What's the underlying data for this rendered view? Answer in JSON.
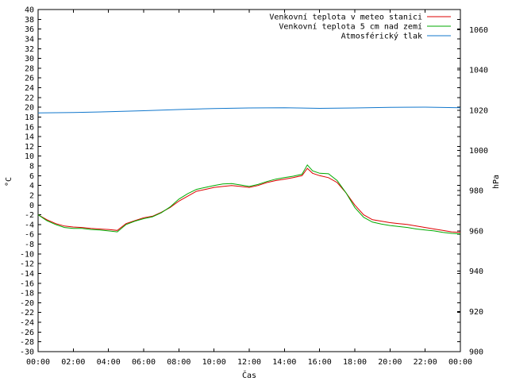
{
  "chart_data": {
    "type": "line",
    "xlabel": "Čas",
    "ylabel": "°C",
    "y2label": "hPa",
    "xlim": [
      0,
      24
    ],
    "ylim": [
      -30,
      40
    ],
    "y2lim": [
      900,
      1070
    ],
    "xticks": [
      "00:00",
      "02:00",
      "04:00",
      "06:00",
      "08:00",
      "10:00",
      "12:00",
      "14:00",
      "16:00",
      "18:00",
      "20:00",
      "22:00",
      "00:00"
    ],
    "yticks": [
      40,
      38,
      36,
      34,
      32,
      30,
      28,
      26,
      24,
      22,
      20,
      18,
      16,
      14,
      12,
      10,
      8,
      6,
      4,
      2,
      0,
      -2,
      -4,
      -6,
      -8,
      -10,
      -12,
      -14,
      -16,
      -18,
      -20,
      -22,
      -24,
      -26,
      -28,
      -30
    ],
    "y2ticks": [
      1060,
      1040,
      1020,
      1000,
      980,
      960,
      940,
      920,
      900
    ],
    "grid": false,
    "legend_position": "top-right",
    "series": [
      {
        "name": "Venkovní teplota v meteo stanici",
        "color": "#dd0000",
        "axis": "left",
        "x": [
          0,
          0.5,
          1,
          1.5,
          2,
          2.5,
          3,
          3.5,
          4,
          4.5,
          5,
          5.5,
          6,
          6.5,
          7,
          7.5,
          8,
          8.5,
          9,
          9.5,
          10,
          10.5,
          11,
          11.5,
          12,
          12.5,
          13,
          13.5,
          14,
          14.5,
          15,
          15.3,
          15.6,
          16,
          16.5,
          17,
          17.5,
          18,
          18.5,
          19,
          19.5,
          20,
          20.5,
          21,
          21.5,
          22,
          22.5,
          23,
          23.5,
          24
        ],
        "y": [
          -2,
          -3,
          -3.8,
          -4.3,
          -4.5,
          -4.6,
          -4.8,
          -4.9,
          -5,
          -5.2,
          -3.8,
          -3.2,
          -2.6,
          -2.3,
          -1.5,
          -0.5,
          0.8,
          1.8,
          2.8,
          3.2,
          3.6,
          3.8,
          4,
          3.8,
          3.6,
          4,
          4.6,
          5,
          5.3,
          5.6,
          6,
          7.5,
          6.5,
          6,
          5.6,
          4.6,
          2.5,
          0,
          -2,
          -3,
          -3.3,
          -3.6,
          -3.8,
          -4,
          -4.3,
          -4.6,
          -4.9,
          -5.2,
          -5.5,
          -5.6
        ]
      },
      {
        "name": "Venkovní teplota 5 cm nad zemí",
        "color": "#00aa00",
        "axis": "left",
        "x": [
          0,
          0.5,
          1,
          1.5,
          2,
          2.5,
          3,
          3.5,
          4,
          4.5,
          5,
          5.5,
          6,
          6.5,
          7,
          7.5,
          8,
          8.5,
          9,
          9.5,
          10,
          10.5,
          11,
          11.5,
          12,
          12.5,
          13,
          13.5,
          14,
          14.5,
          15,
          15.3,
          15.6,
          16,
          16.5,
          17,
          17.5,
          18,
          18.5,
          19,
          19.5,
          20,
          20.5,
          21,
          21.5,
          22,
          22.5,
          23,
          23.5,
          24
        ],
        "y": [
          -2,
          -3.2,
          -4,
          -4.6,
          -4.8,
          -4.8,
          -5,
          -5.1,
          -5.3,
          -5.5,
          -4,
          -3.3,
          -2.8,
          -2.4,
          -1.6,
          -0.4,
          1.2,
          2.3,
          3.2,
          3.6,
          4,
          4.3,
          4.4,
          4.1,
          3.8,
          4.2,
          4.8,
          5.3,
          5.6,
          5.9,
          6.3,
          8.2,
          7,
          6.5,
          6.4,
          5,
          2.5,
          -0.5,
          -2.5,
          -3.5,
          -3.9,
          -4.2,
          -4.4,
          -4.6,
          -4.9,
          -5.1,
          -5.3,
          -5.6,
          -5.8,
          -5.9
        ]
      },
      {
        "name": "Atmosférický tlak",
        "color": "#1177cc",
        "axis": "right",
        "x": [
          0,
          2,
          4,
          6,
          8,
          10,
          12,
          14,
          16,
          18,
          20,
          22,
          24
        ],
        "y": [
          1018.6,
          1018.8,
          1019.2,
          1019.7,
          1020.3,
          1020.8,
          1021.1,
          1021.2,
          1020.9,
          1021.1,
          1021.4,
          1021.5,
          1021.2
        ]
      }
    ]
  }
}
